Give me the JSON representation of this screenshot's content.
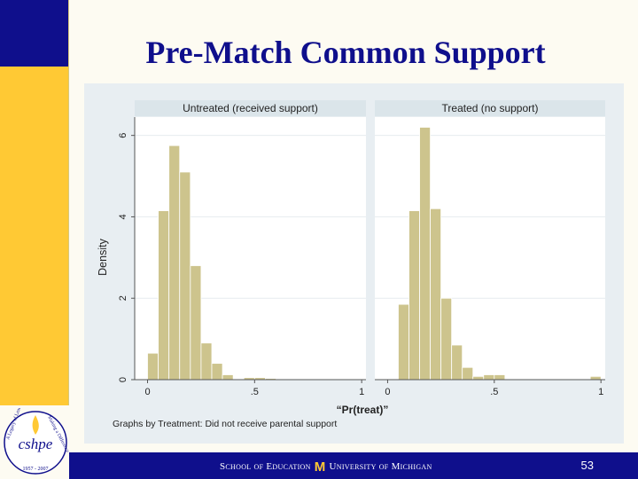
{
  "slide": {
    "title": "Pre-Match Common Support",
    "page_number": "53",
    "footer_left": "School of Education",
    "footer_right": "University of Michigan",
    "colors": {
      "navy": "#0f0f8c",
      "gold": "#ffc934",
      "bar": "#cdc48d",
      "bar_edge": "#ffffff",
      "panel_header": "#dbe5ea",
      "chart_bg": "#e8eef2"
    }
  },
  "logo": {
    "name": "cshpe",
    "ring_top_left": "A Legacy of Leaders",
    "ring_top_right": "Making a Difference",
    "ring_bottom": "1957 - 2007"
  },
  "chart_data": {
    "type": "bar",
    "ylabel": "Density",
    "xlabel": "“Pr(treat)”",
    "note": "Graphs by Treatment: Did not receive parental support",
    "yticks": [
      0,
      2,
      4,
      6
    ],
    "xticks": [
      "0",
      ".5",
      "1"
    ],
    "ylim": [
      0,
      6.45
    ],
    "xlim": [
      -0.06,
      1.02
    ],
    "bin_width": 0.05,
    "panels": [
      {
        "title": "Untreated (received support)",
        "bins": [
          {
            "x": 0.0,
            "y": 0.65
          },
          {
            "x": 0.05,
            "y": 4.15
          },
          {
            "x": 0.1,
            "y": 5.75
          },
          {
            "x": 0.15,
            "y": 5.1
          },
          {
            "x": 0.2,
            "y": 2.8
          },
          {
            "x": 0.25,
            "y": 0.9
          },
          {
            "x": 0.3,
            "y": 0.4
          },
          {
            "x": 0.35,
            "y": 0.12
          },
          {
            "x": 0.45,
            "y": 0.05
          },
          {
            "x": 0.5,
            "y": 0.05
          },
          {
            "x": 0.55,
            "y": 0.03
          }
        ]
      },
      {
        "title": "Treated (no support)",
        "bins": [
          {
            "x": 0.05,
            "y": 1.85
          },
          {
            "x": 0.1,
            "y": 4.15
          },
          {
            "x": 0.15,
            "y": 6.2
          },
          {
            "x": 0.2,
            "y": 4.2
          },
          {
            "x": 0.25,
            "y": 2.0
          },
          {
            "x": 0.3,
            "y": 0.85
          },
          {
            "x": 0.35,
            "y": 0.3
          },
          {
            "x": 0.4,
            "y": 0.08
          },
          {
            "x": 0.45,
            "y": 0.12
          },
          {
            "x": 0.5,
            "y": 0.12
          },
          {
            "x": 0.95,
            "y": 0.08
          }
        ]
      }
    ]
  }
}
